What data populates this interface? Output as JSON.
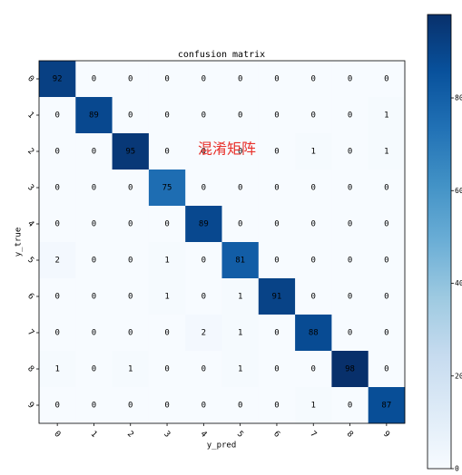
{
  "chart_data": {
    "type": "heatmap",
    "title": "confusion matrix",
    "x_label": "y_pred",
    "y_label": "y_true",
    "x_categories": [
      "0",
      "1",
      "2",
      "3",
      "4",
      "5",
      "6",
      "7",
      "8",
      "9"
    ],
    "y_categories": [
      "0",
      "1",
      "2",
      "3",
      "4",
      "5",
      "6",
      "7",
      "8",
      "9"
    ],
    "values": [
      [
        92,
        0,
        0,
        0,
        0,
        0,
        0,
        0,
        0,
        0
      ],
      [
        0,
        89,
        0,
        0,
        0,
        0,
        0,
        0,
        0,
        1
      ],
      [
        0,
        0,
        95,
        0,
        0,
        0,
        0,
        1,
        0,
        1
      ],
      [
        0,
        0,
        0,
        75,
        0,
        0,
        0,
        0,
        0,
        0
      ],
      [
        0,
        0,
        0,
        0,
        89,
        0,
        0,
        0,
        0,
        0
      ],
      [
        2,
        0,
        0,
        1,
        0,
        81,
        0,
        0,
        0,
        0
      ],
      [
        0,
        0,
        0,
        1,
        0,
        1,
        91,
        0,
        0,
        0
      ],
      [
        0,
        0,
        0,
        0,
        2,
        1,
        0,
        88,
        0,
        0
      ],
      [
        1,
        0,
        1,
        0,
        0,
        1,
        0,
        0,
        98,
        0
      ],
      [
        0,
        0,
        0,
        0,
        0,
        0,
        0,
        1,
        0,
        87
      ]
    ],
    "colormap": [
      "#f7fbff",
      "#deebf7",
      "#c6dbef",
      "#9ecae1",
      "#6baed6",
      "#4292c6",
      "#2171b5",
      "#08519c",
      "#08306b"
    ],
    "clim": [
      0,
      98
    ],
    "cticks": [
      0,
      20,
      40,
      60,
      80
    ],
    "annotation": "混淆矩阵",
    "annotation_color": "#e8302a"
  }
}
